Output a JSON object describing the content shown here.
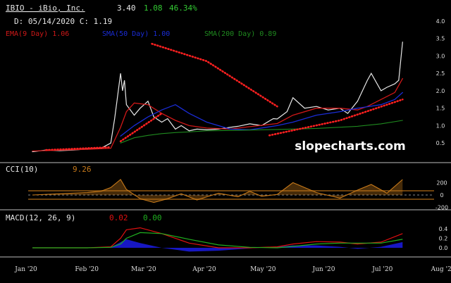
{
  "header": {
    "symbol_name": "IBIO - iBio, Inc.",
    "price": "3.40",
    "change": "1.08",
    "change_pct": "46.34%",
    "date_line": "D: 05/14/2020 C: 1.19"
  },
  "legend": {
    "ema": "EMA(9 Day) 1.06",
    "sma50": "SMA(50 Day) 1.00",
    "sma200": "SMA(200 Day) 0.89"
  },
  "watermark": "slopecharts.com",
  "colors": {
    "background": "#000000",
    "price": "#e8e8e8",
    "ema": "#d01818",
    "sma50": "#1a2cd6",
    "sma200": "#1f8a1f",
    "trend": "#ff2020",
    "cci": "#c87a1a",
    "macd_line": "#e01010",
    "macd_signal": "#20b020",
    "macd_hist": "#1a1ad8",
    "green_text": "#33cc33"
  },
  "panels": {
    "cci": {
      "label": "CCI(10)",
      "value": "9.26"
    },
    "macd": {
      "label": "MACD(12, 26, 9)",
      "value1": "0.02",
      "value2": "0.00"
    }
  },
  "chart_data": [
    {
      "type": "line",
      "title": "IBIO - iBio, Inc.",
      "x_months": [
        "Jan '20",
        "Feb '20",
        "Mar '20",
        "Apr '20",
        "May '20",
        "Jun '20",
        "Jul '20",
        "Aug '20"
      ],
      "y_ticks": [
        "4.0",
        "3.5",
        "3.0",
        "2.5",
        "2.0",
        "1.5",
        "1.0",
        "0.5"
      ],
      "ylim": [
        0.2,
        4.0
      ],
      "series": [
        {
          "name": "Price",
          "x": [
            "2020-01-10",
            "2020-01-17",
            "2020-01-24",
            "2020-01-31",
            "2020-02-07",
            "2020-02-14",
            "2020-02-19",
            "2020-02-21",
            "2020-02-24",
            "2020-02-25",
            "2020-02-26",
            "2020-02-27",
            "2020-03-02",
            "2020-03-05",
            "2020-03-09",
            "2020-03-12",
            "2020-03-16",
            "2020-03-19",
            "2020-03-23",
            "2020-03-26",
            "2020-03-30",
            "2020-04-03",
            "2020-04-08",
            "2020-04-14",
            "2020-04-20",
            "2020-04-24",
            "2020-04-30",
            "2020-05-06",
            "2020-05-12",
            "2020-05-14",
            "2020-05-19",
            "2020-05-22",
            "2020-05-28",
            "2020-06-03",
            "2020-06-09",
            "2020-06-15",
            "2020-06-19",
            "2020-06-24",
            "2020-06-29",
            "2020-07-01",
            "2020-07-06",
            "2020-07-09",
            "2020-07-13",
            "2020-07-15",
            "2020-07-17"
          ],
          "values": [
            0.25,
            0.3,
            0.28,
            0.3,
            0.33,
            0.35,
            0.5,
            1.2,
            2.5,
            2.0,
            2.3,
            1.6,
            1.3,
            1.5,
            1.7,
            1.25,
            1.1,
            1.2,
            0.9,
            1.0,
            0.85,
            0.9,
            0.88,
            0.9,
            0.95,
            0.98,
            1.05,
            1.0,
            1.2,
            1.19,
            1.4,
            1.8,
            1.5,
            1.55,
            1.45,
            1.5,
            1.35,
            1.7,
            2.3,
            2.5,
            2.0,
            2.1,
            2.2,
            2.3,
            3.4
          ]
        },
        {
          "name": "EMA(9 Day)",
          "x": [
            "2020-01-10",
            "2020-02-07",
            "2020-02-19",
            "2020-02-24",
            "2020-02-27",
            "2020-03-02",
            "2020-03-09",
            "2020-03-16",
            "2020-03-23",
            "2020-03-30",
            "2020-04-08",
            "2020-04-20",
            "2020-04-30",
            "2020-05-14",
            "2020-05-22",
            "2020-06-03",
            "2020-06-15",
            "2020-06-24",
            "2020-06-29",
            "2020-07-06",
            "2020-07-13",
            "2020-07-17"
          ],
          "values": [
            0.27,
            0.32,
            0.35,
            0.95,
            1.4,
            1.65,
            1.6,
            1.35,
            1.15,
            1.0,
            0.93,
            0.9,
            0.97,
            1.06,
            1.3,
            1.5,
            1.5,
            1.45,
            1.55,
            1.75,
            1.95,
            2.35
          ]
        },
        {
          "name": "SMA(50 Day)",
          "x": [
            "2020-02-24",
            "2020-03-02",
            "2020-03-09",
            "2020-03-16",
            "2020-03-23",
            "2020-03-30",
            "2020-04-08",
            "2020-04-20",
            "2020-04-30",
            "2020-05-14",
            "2020-05-22",
            "2020-06-03",
            "2020-06-15",
            "2020-06-24",
            "2020-07-06",
            "2020-07-13",
            "2020-07-17"
          ],
          "values": [
            0.7,
            1.0,
            1.25,
            1.45,
            1.6,
            1.35,
            1.1,
            0.9,
            0.88,
            1.0,
            1.1,
            1.3,
            1.4,
            1.5,
            1.6,
            1.75,
            1.95
          ]
        },
        {
          "name": "SMA(200 Day)",
          "x": [
            "2020-02-24",
            "2020-03-02",
            "2020-03-09",
            "2020-03-16",
            "2020-03-23",
            "2020-03-30",
            "2020-04-08",
            "2020-04-20",
            "2020-05-14",
            "2020-06-03",
            "2020-06-24",
            "2020-07-06",
            "2020-07-17"
          ],
          "values": [
            0.5,
            0.65,
            0.72,
            0.77,
            0.8,
            0.82,
            0.85,
            0.86,
            0.89,
            0.92,
            0.98,
            1.05,
            1.15
          ]
        },
        {
          "name": "Trend",
          "x": [
            "2020-01-17",
            "2020-02-19"
          ],
          "values": [
            0.3,
            0.38
          ]
        },
        {
          "name": "Trend",
          "x": [
            "2020-02-24",
            "2020-03-16"
          ],
          "values": [
            0.55,
            1.35
          ]
        },
        {
          "name": "Trend",
          "x": [
            "2020-03-11",
            "2020-04-08",
            "2020-05-14"
          ],
          "values": [
            3.35,
            2.85,
            1.55
          ]
        },
        {
          "name": "Trend",
          "x": [
            "2020-05-10",
            "2020-06-15",
            "2020-07-17"
          ],
          "values": [
            0.72,
            1.15,
            1.75
          ]
        }
      ]
    },
    {
      "type": "area",
      "title": "CCI(10)",
      "ylim": [
        -250,
        250
      ],
      "y_ticks": [
        "200",
        "0",
        "-200"
      ],
      "x": [
        "2020-01-10",
        "2020-01-24",
        "2020-02-07",
        "2020-02-14",
        "2020-02-19",
        "2020-02-24",
        "2020-02-27",
        "2020-03-05",
        "2020-03-12",
        "2020-03-19",
        "2020-03-26",
        "2020-04-03",
        "2020-04-14",
        "2020-04-24",
        "2020-04-30",
        "2020-05-06",
        "2020-05-14",
        "2020-05-22",
        "2020-06-03",
        "2020-06-15",
        "2020-06-24",
        "2020-07-01",
        "2020-07-09",
        "2020-07-17"
      ],
      "values": [
        0,
        20,
        40,
        60,
        120,
        250,
        90,
        -60,
        -120,
        -60,
        20,
        -80,
        30,
        -30,
        60,
        -20,
        9,
        200,
        40,
        -50,
        80,
        170,
        30,
        250
      ]
    },
    {
      "type": "line",
      "title": "MACD(12, 26, 9)",
      "ylim": [
        -0.1,
        0.5
      ],
      "y_ticks": [
        "0.4",
        "0.2",
        "0.0"
      ],
      "x": [
        "2020-01-10",
        "2020-02-07",
        "2020-02-19",
        "2020-02-24",
        "2020-02-27",
        "2020-03-05",
        "2020-03-16",
        "2020-03-30",
        "2020-04-14",
        "2020-04-30",
        "2020-05-14",
        "2020-05-22",
        "2020-06-03",
        "2020-06-15",
        "2020-06-24",
        "2020-07-06",
        "2020-07-17"
      ],
      "series": [
        {
          "name": "MACD",
          "values": [
            0,
            0,
            0.02,
            0.2,
            0.38,
            0.42,
            0.3,
            0.1,
            0.0,
            0.0,
            0.02,
            0.08,
            0.13,
            0.12,
            0.08,
            0.12,
            0.3
          ]
        },
        {
          "name": "Signal",
          "values": [
            0,
            0,
            0.01,
            0.08,
            0.2,
            0.32,
            0.3,
            0.18,
            0.06,
            0.01,
            0.0,
            0.03,
            0.08,
            0.1,
            0.1,
            0.1,
            0.18
          ]
        },
        {
          "name": "Histogram",
          "values": [
            0,
            0,
            0.01,
            0.12,
            0.18,
            0.1,
            0.0,
            -0.08,
            -0.06,
            -0.01,
            0.02,
            0.05,
            0.05,
            0.02,
            -0.02,
            0.02,
            0.12
          ]
        }
      ]
    }
  ]
}
